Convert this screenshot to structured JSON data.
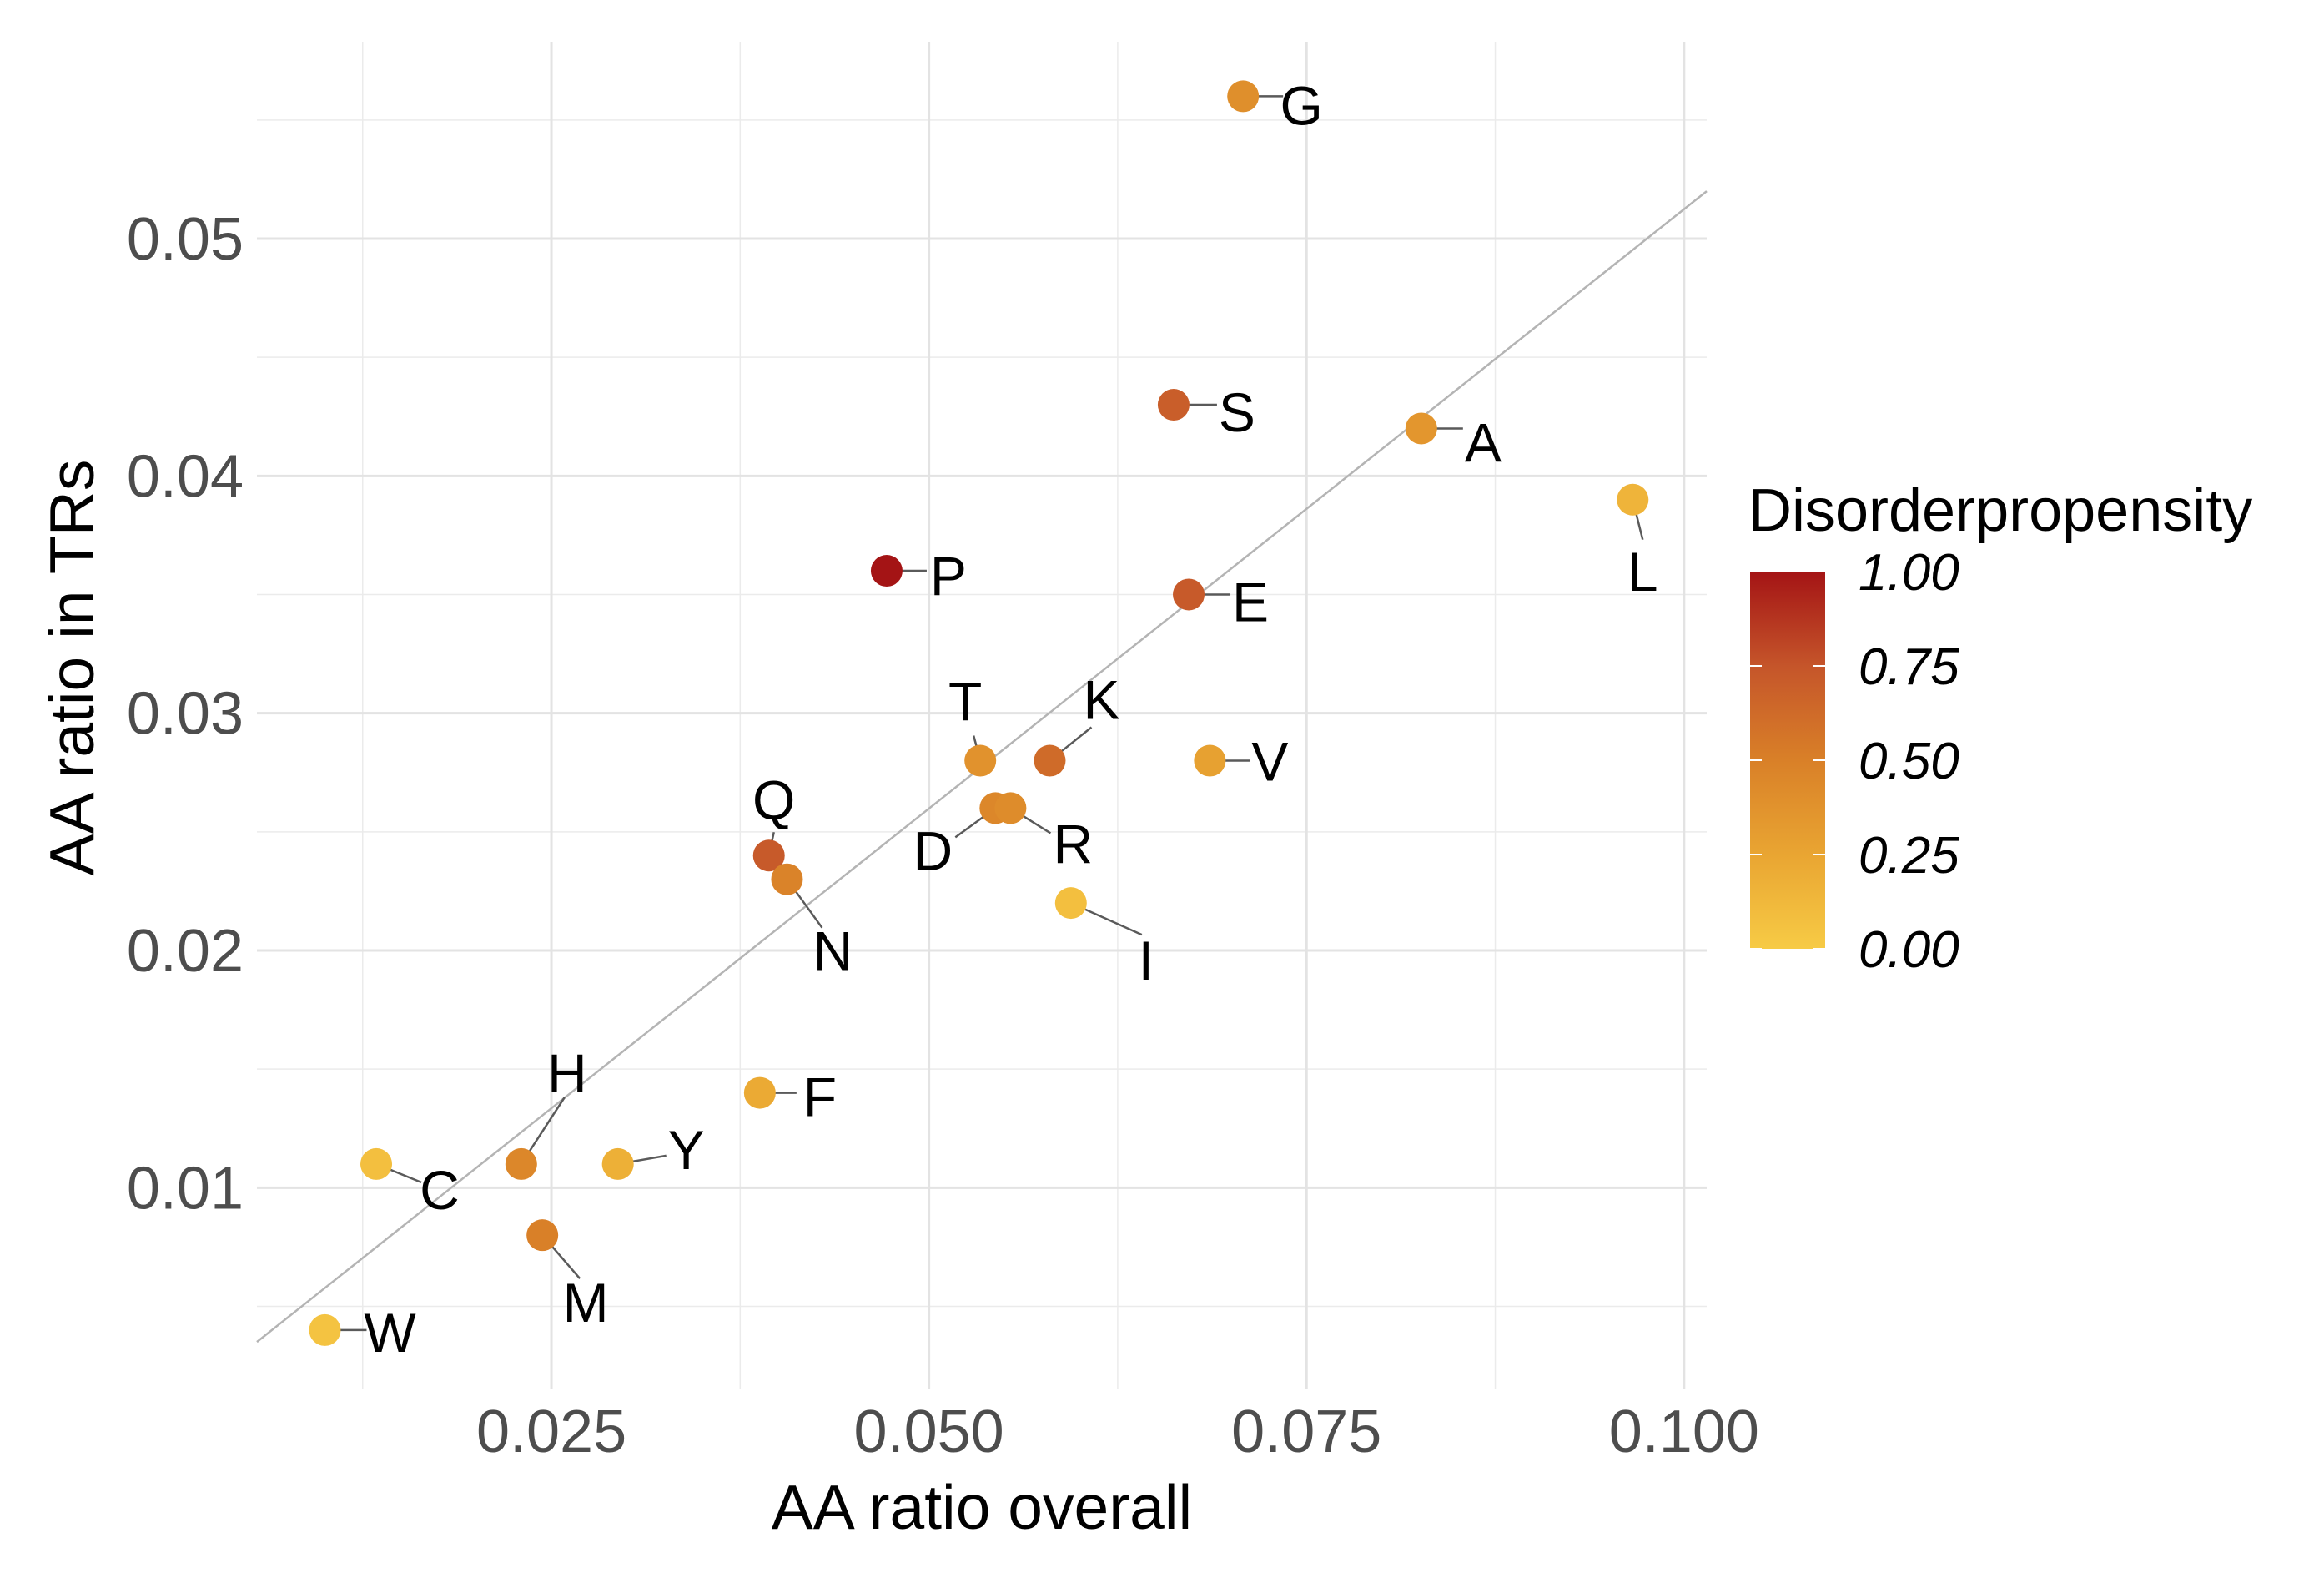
{
  "chart_data": {
    "type": "scatter",
    "title": "",
    "xlabel": "AA ratio overall",
    "ylabel": "AA ratio in TRs",
    "xlim": [
      0.0055,
      0.1015
    ],
    "ylim": [
      0.0015,
      0.0583
    ],
    "x_major_ticks": [
      0.025,
      0.05,
      0.075,
      0.1
    ],
    "x_tick_labels": [
      "0.025",
      "0.050",
      "0.075",
      "0.100"
    ],
    "y_major_ticks": [
      0.01,
      0.02,
      0.03,
      0.04,
      0.05
    ],
    "y_tick_labels": [
      "0.01",
      "0.02",
      "0.03",
      "0.04",
      "0.05"
    ],
    "x_minor_ticks": [
      0.0125,
      0.0375,
      0.0625,
      0.0875
    ],
    "y_minor_ticks": [
      0.005,
      0.015,
      0.025,
      0.035,
      0.045,
      0.055
    ],
    "grid": true,
    "reference_line": {
      "type": "diagonal",
      "x": [
        0.0055,
        0.1015
      ],
      "y": [
        0.0035,
        0.052
      ]
    },
    "legend": {
      "title": "Disorderpropensity",
      "placement": "right",
      "type": "colorbar",
      "ticks": [
        1.0,
        0.75,
        0.5,
        0.25,
        0.0
      ],
      "tick_labels": [
        "1.00",
        "0.75",
        "0.50",
        "0.25",
        "0.00"
      ],
      "colors": [
        "#f7cb45",
        "#e9a532",
        "#d98028",
        "#c5552a",
        "#a41415"
      ],
      "range": [
        0,
        1
      ]
    },
    "points": [
      {
        "label": "G",
        "x": 0.0708,
        "y": 0.056,
        "d": 0.4
      },
      {
        "label": "S",
        "x": 0.0662,
        "y": 0.043,
        "d": 0.7
      },
      {
        "label": "A",
        "x": 0.0826,
        "y": 0.042,
        "d": 0.35
      },
      {
        "label": "L",
        "x": 0.0966,
        "y": 0.039,
        "d": 0.15
      },
      {
        "label": "P",
        "x": 0.0472,
        "y": 0.036,
        "d": 1.0
      },
      {
        "label": "E",
        "x": 0.0672,
        "y": 0.035,
        "d": 0.72
      },
      {
        "label": "T",
        "x": 0.0534,
        "y": 0.028,
        "d": 0.38
      },
      {
        "label": "K",
        "x": 0.058,
        "y": 0.028,
        "d": 0.62
      },
      {
        "label": "V",
        "x": 0.0686,
        "y": 0.028,
        "d": 0.28
      },
      {
        "label": "D",
        "x": 0.0544,
        "y": 0.026,
        "d": 0.45
      },
      {
        "label": "R",
        "x": 0.0554,
        "y": 0.026,
        "d": 0.42
      },
      {
        "label": "Q",
        "x": 0.0394,
        "y": 0.024,
        "d": 0.72
      },
      {
        "label": "N",
        "x": 0.0406,
        "y": 0.023,
        "d": 0.48
      },
      {
        "label": "I",
        "x": 0.0594,
        "y": 0.022,
        "d": 0.08
      },
      {
        "label": "F",
        "x": 0.0388,
        "y": 0.014,
        "d": 0.22
      },
      {
        "label": "H",
        "x": 0.023,
        "y": 0.011,
        "d": 0.45
      },
      {
        "label": "Y",
        "x": 0.0294,
        "y": 0.011,
        "d": 0.18
      },
      {
        "label": "C",
        "x": 0.0134,
        "y": 0.011,
        "d": 0.08
      },
      {
        "label": "M",
        "x": 0.0244,
        "y": 0.008,
        "d": 0.5
      },
      {
        "label": "W",
        "x": 0.01,
        "y": 0.004,
        "d": 0.05
      }
    ]
  }
}
